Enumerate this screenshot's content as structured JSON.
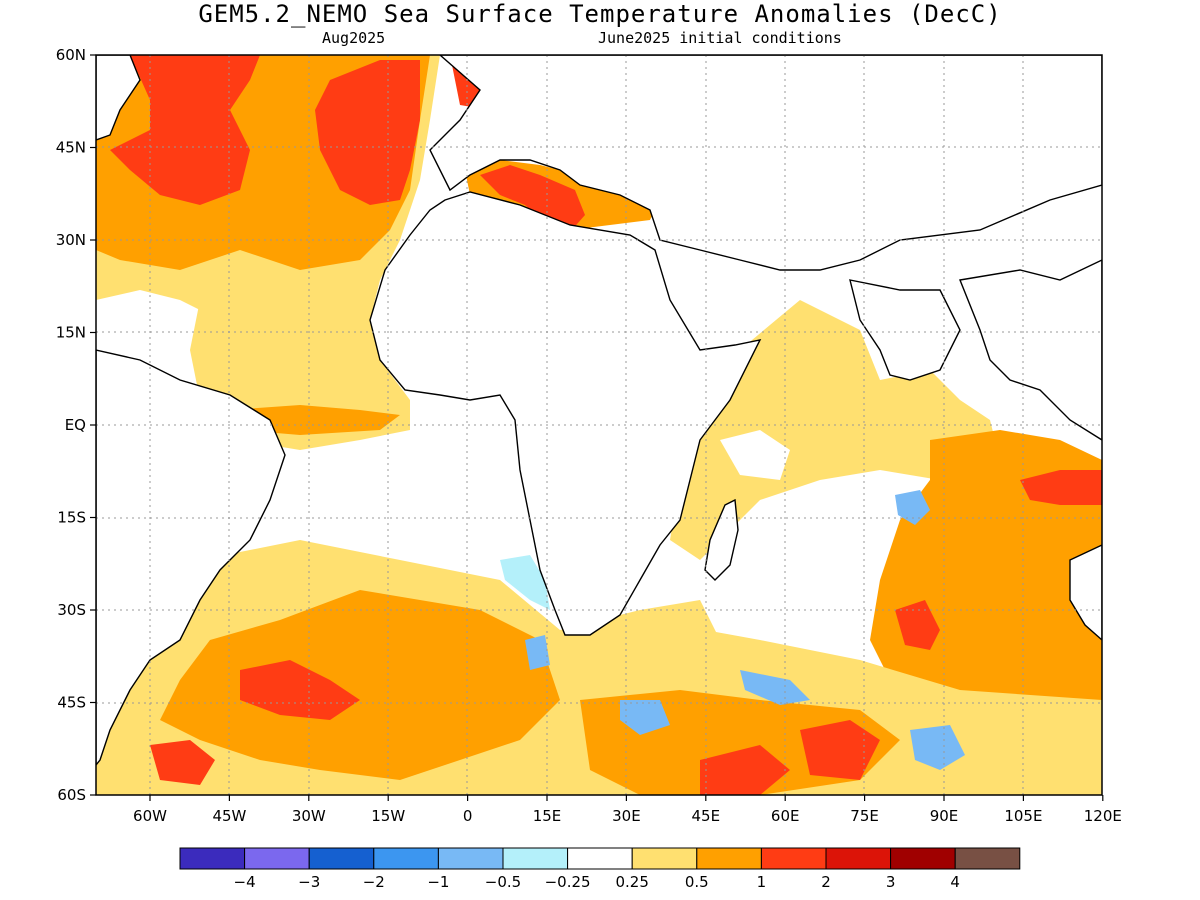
{
  "title": "GEM5.2_NEMO Sea Surface Temperature Anomalies (DecC)",
  "subtitle_left": "Aug2025",
  "subtitle_right": "June2025 initial conditions",
  "lat_labels": [
    "60N",
    "45N",
    "30N",
    "15N",
    "EQ",
    "15S",
    "30S",
    "45S",
    "60S"
  ],
  "lon_labels": [
    "60W",
    "45W",
    "30W",
    "15W",
    "0",
    "15E",
    "30E",
    "45E",
    "60E",
    "75E",
    "90E",
    "105E",
    "120E"
  ],
  "colorbar": {
    "colors": [
      "#3b2bbd",
      "#7b68ee",
      "#1560d0",
      "#3c96f0",
      "#78b9f5",
      "#b4f0fa",
      "#ffffff",
      "#ffe070",
      "#ffa000",
      "#ff3c14",
      "#dc1408",
      "#a00000",
      "#785044"
    ],
    "labels": [
      "−4",
      "−3",
      "−2",
      "−1",
      "−0.5",
      "−0.25",
      "0.25",
      "0.5",
      "1",
      "2",
      "3",
      "4"
    ]
  },
  "legend_colors": {
    "very_light_anom": "#b4f0fa",
    "light_neg": "#78b9f5",
    "mod_neg": "#3c96f0",
    "light_pos": "#ffe070",
    "mod_pos": "#ffa000",
    "strong_pos": "#ff3c14",
    "land": "#ffffff"
  }
}
